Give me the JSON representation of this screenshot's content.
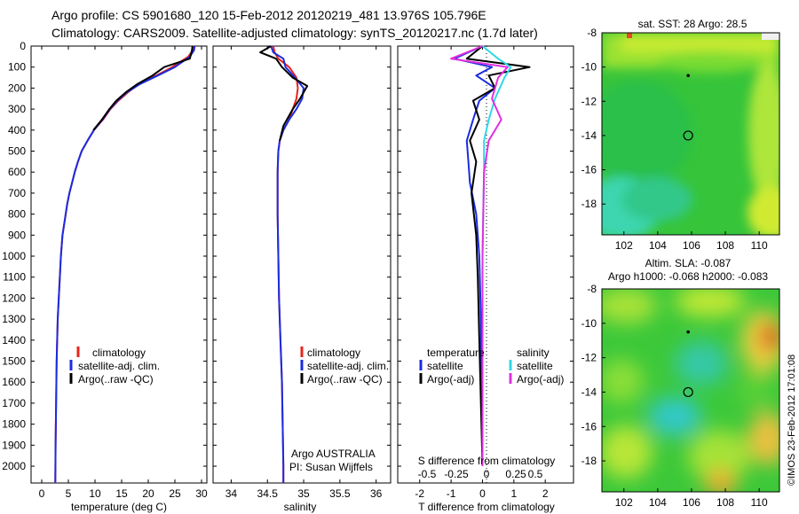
{
  "header": {
    "line1": "Argo profile: CS 5901680_120 15-Feb-2012 20120219_481 13.976S 105.796E",
    "line2": "Climatology: CARS2009. Satellite-adjusted climatology: synTS_20120217.nc (1.7d later)"
  },
  "side_stamp": "©IMOS 23-Feb-2012 17:01:08",
  "colors": {
    "climatology": "#e8231d",
    "satellite": "#1a2ce0",
    "argo": "#000000",
    "satellite_s": "#30d8e8",
    "argo_s": "#e030e0"
  },
  "chart_data": [
    {
      "type": "line",
      "id": "temperature-profile",
      "xlabel": "temperature (deg C)",
      "ylabel": "",
      "xlim": [
        -2,
        31
      ],
      "ylim": [
        2080,
        0
      ],
      "y_reversed": true,
      "xticks": [
        0,
        5,
        10,
        15,
        20,
        25,
        30
      ],
      "yticks": [
        0,
        100,
        200,
        300,
        400,
        500,
        600,
        700,
        800,
        900,
        1000,
        1100,
        1200,
        1300,
        1400,
        1500,
        1600,
        1700,
        1800,
        1900,
        2000
      ],
      "legend": [
        "climatology",
        "satellite-adj. clim.",
        "Argo(..raw -QC)"
      ],
      "series": [
        {
          "name": "climatology",
          "color": "#e8231d",
          "x": [
            28.5,
            28.4,
            27.5,
            24.5,
            21.5,
            18.3,
            16.2,
            14.4,
            12.9,
            11.5,
            9.8,
            8.6,
            7.5,
            6.8,
            6.2,
            5.7,
            5.2,
            4.8,
            4.5,
            4.2,
            3.9,
            3.6,
            3.4,
            3.2,
            3.0,
            2.9,
            2.8,
            2.7,
            2.6,
            2.55
          ],
          "y": [
            0,
            20,
            50,
            100,
            140,
            180,
            220,
            260,
            300,
            350,
            400,
            450,
            500,
            550,
            600,
            650,
            700,
            750,
            800,
            850,
            900,
            1000,
            1100,
            1200,
            1300,
            1400,
            1500,
            1700,
            1900,
            2080
          ]
        },
        {
          "name": "satellite-adj. clim.",
          "color": "#1a2ce0",
          "x": [
            28.7,
            28.6,
            27.8,
            25.0,
            21.8,
            18.5,
            16.0,
            14.2,
            12.8,
            11.4,
            9.8,
            8.6,
            7.5,
            6.8,
            6.2,
            5.7,
            5.2,
            4.8,
            4.5,
            4.2,
            3.9,
            3.6,
            3.4,
            3.2,
            3.0,
            2.9,
            2.8,
            2.7,
            2.6,
            2.55
          ],
          "y": [
            0,
            20,
            50,
            100,
            140,
            180,
            220,
            260,
            300,
            350,
            400,
            450,
            500,
            550,
            600,
            650,
            700,
            750,
            800,
            850,
            900,
            1000,
            1100,
            1200,
            1300,
            1400,
            1500,
            1700,
            1900,
            2080
          ]
        },
        {
          "name": "Argo(..raw -QC)",
          "color": "#000000",
          "x": [
            28.3,
            28.2,
            27.8,
            23.0,
            20.8,
            18.0,
            15.8,
            14.0,
            12.7,
            11.3,
            9.7
          ],
          "y": [
            0,
            20,
            60,
            100,
            140,
            180,
            220,
            260,
            300,
            350,
            400
          ]
        }
      ]
    },
    {
      "type": "line",
      "id": "salinity-profile",
      "xlabel": "salinity",
      "ylabel": "",
      "xlim": [
        33.75,
        36.2
      ],
      "ylim": [
        2080,
        0
      ],
      "y_reversed": true,
      "xticks": [
        34,
        34.5,
        35,
        35.5,
        36
      ],
      "legend": [
        "climatology",
        "satellite-adj. clim.",
        "Argo(..raw -QC)"
      ],
      "annotations": [
        "Argo AUSTRALIA",
        "PI: Susan Wijffels"
      ],
      "series": [
        {
          "name": "climatology",
          "color": "#e8231d",
          "x": [
            34.58,
            34.6,
            34.65,
            34.8,
            34.9,
            34.92,
            34.9,
            34.85,
            34.8,
            34.72,
            34.67,
            34.65,
            34.64,
            34.64,
            34.64,
            34.65,
            34.66,
            34.68,
            34.7,
            34.71,
            34.72,
            34.72
          ],
          "y": [
            0,
            30,
            60,
            100,
            150,
            200,
            250,
            300,
            350,
            400,
            450,
            500,
            600,
            700,
            800,
            1000,
            1200,
            1400,
            1600,
            1800,
            2000,
            2080
          ]
        },
        {
          "name": "satellite-adj. clim.",
          "color": "#1a2ce0",
          "x": [
            34.55,
            34.58,
            34.72,
            34.75,
            34.88,
            35.0,
            34.98,
            34.9,
            34.8,
            34.72,
            34.67,
            34.65,
            34.64,
            34.64,
            34.64,
            34.65,
            34.66,
            34.68,
            34.7,
            34.71,
            34.72,
            34.72
          ],
          "y": [
            0,
            30,
            60,
            100,
            150,
            200,
            250,
            300,
            350,
            400,
            450,
            500,
            600,
            700,
            800,
            1000,
            1200,
            1400,
            1600,
            1800,
            2000,
            2080
          ]
        },
        {
          "name": "Argo(..raw -QC)",
          "color": "#000000",
          "x": [
            34.55,
            34.4,
            34.62,
            34.7,
            34.85,
            35.05,
            34.95,
            34.85,
            34.72,
            34.67
          ],
          "y": [
            0,
            30,
            60,
            100,
            150,
            190,
            250,
            300,
            380,
            450
          ]
        }
      ]
    },
    {
      "type": "line",
      "id": "difference-profile",
      "xlabel": "T difference from climatology",
      "top_axis_label": "S difference from climatology",
      "xlim": [
        -2.7,
        2.9
      ],
      "ylim": [
        2080,
        0
      ],
      "y_reversed": true,
      "xticks": [
        -2,
        -1,
        0,
        1,
        2
      ],
      "top_ticks": [
        "-0.5",
        "-0.25",
        "0",
        "0.25",
        "0.5"
      ],
      "legend_left_title": "temperature",
      "legend_right_title": "salinity",
      "legend_left": [
        "satellite",
        "Argo(-adj)"
      ],
      "legend_right": [
        "satellite",
        "Argo(-adj)"
      ],
      "series": [
        {
          "name": "temperature satellite",
          "color": "#1a2ce0",
          "x": [
            0,
            -0.9,
            0.3,
            -0.2,
            0.4,
            -0.1,
            -0.3,
            -0.5,
            -0.45,
            -0.4,
            -0.2,
            -0.1,
            -0.05,
            0
          ],
          "y": [
            0,
            60,
            100,
            140,
            200,
            260,
            350,
            450,
            550,
            650,
            800,
            1000,
            1300,
            2000
          ]
        },
        {
          "name": "temperature Argo(-adj)",
          "color": "#000000",
          "x": [
            0,
            -0.5,
            1.5,
            0.2,
            0.4,
            -0.3,
            -0.1,
            -0.4,
            -0.2,
            -0.35,
            -0.2,
            -0.15,
            -0.1,
            0
          ],
          "y": [
            0,
            60,
            100,
            140,
            200,
            260,
            350,
            450,
            550,
            700,
            900,
            1100,
            1400,
            2000
          ]
        },
        {
          "name": "salinity satellite",
          "color": "#30d8e8",
          "x": [
            0,
            0.5,
            0.9,
            0.7,
            0.4,
            0.2,
            0.05,
            0.05,
            0,
            0
          ],
          "y": [
            0,
            60,
            100,
            150,
            250,
            350,
            450,
            600,
            1000,
            2000
          ]
        },
        {
          "name": "salinity Argo(-adj)",
          "color": "#e030e0",
          "x": [
            0,
            -1.0,
            0.8,
            0.5,
            0.3,
            0.6,
            0.2,
            0.05,
            0,
            0
          ],
          "y": [
            0,
            60,
            100,
            150,
            250,
            350,
            450,
            600,
            1000,
            2000
          ]
        }
      ]
    },
    {
      "type": "heatmap",
      "id": "sst-map",
      "title": "sat. SST: 28 Argo: 28.5",
      "xlim": [
        100.7,
        111.2
      ],
      "ylim": [
        -19.8,
        -8
      ],
      "xticks": [
        102,
        104,
        106,
        108,
        110
      ],
      "yticks": [
        -8,
        -10,
        -12,
        -14,
        -16,
        -18
      ],
      "markers": [
        {
          "lon": 105.8,
          "lat": -14.0,
          "shape": "circle"
        },
        {
          "lon": 105.8,
          "lat": -10.5,
          "shape": "dot"
        }
      ]
    },
    {
      "type": "heatmap",
      "id": "sla-map",
      "title": "Altim. SLA: -0.087",
      "subtitle": "Argo h1000: -0.068 h2000: -0.083",
      "xlim": [
        100.7,
        111.2
      ],
      "ylim": [
        -19.8,
        -8
      ],
      "xticks": [
        102,
        104,
        106,
        108,
        110
      ],
      "yticks": [
        -8,
        -10,
        -12,
        -14,
        -16,
        -18
      ],
      "markers": [
        {
          "lon": 105.8,
          "lat": -14.0,
          "shape": "circle"
        },
        {
          "lon": 105.8,
          "lat": -10.5,
          "shape": "dot"
        }
      ]
    }
  ]
}
